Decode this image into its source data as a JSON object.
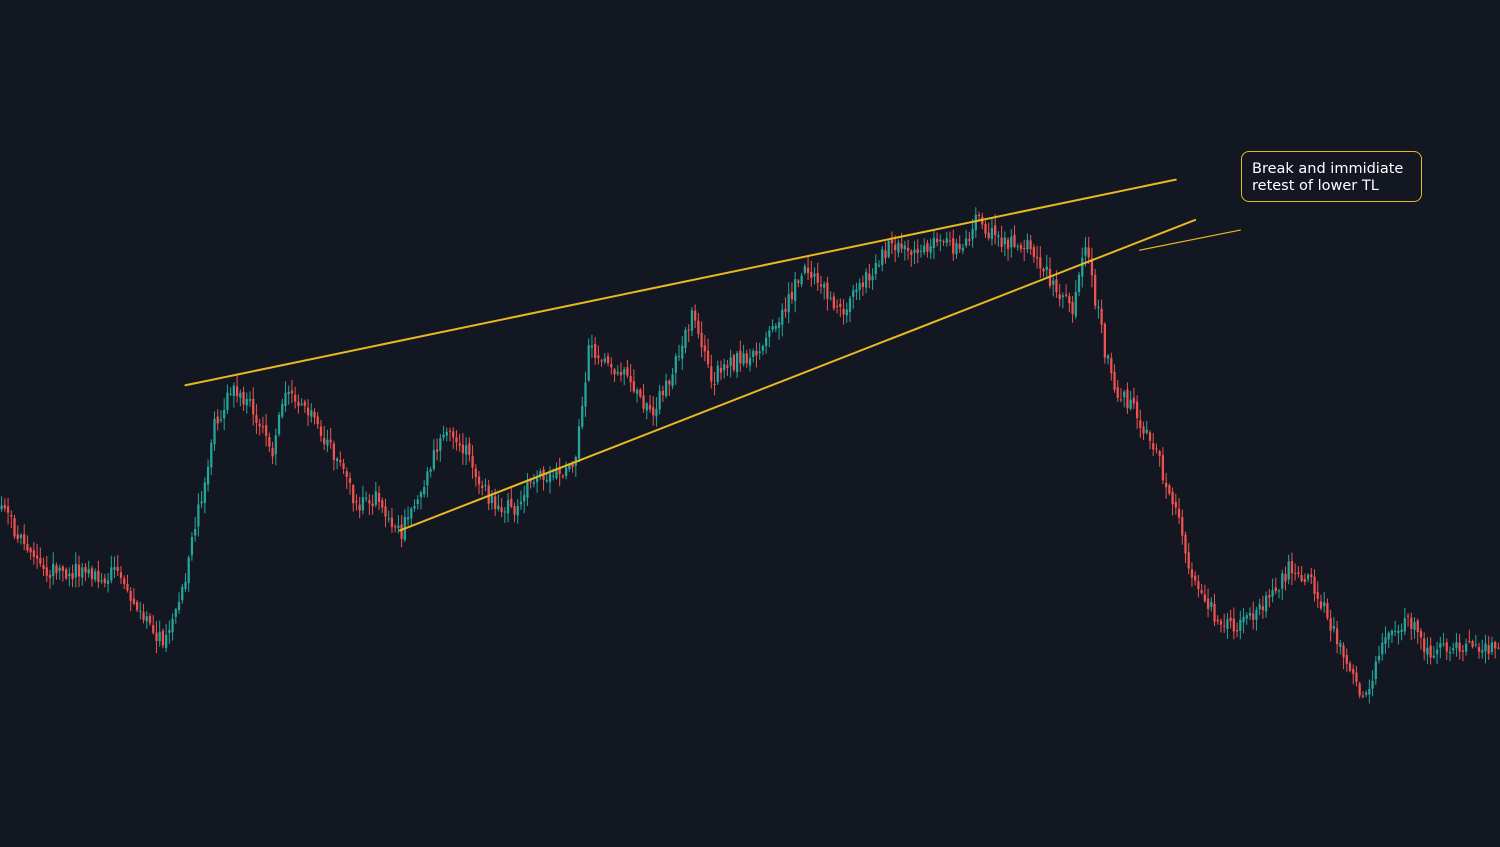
{
  "chart_data": {
    "type": "candlestick",
    "title": "",
    "xlabel": "",
    "ylabel": "",
    "ylim": [
      0,
      100
    ],
    "grid": false,
    "legend": "none",
    "colors": {
      "background": "#131722",
      "up": "#26a69a",
      "down": "#ef5350",
      "trendline": "#e8b820",
      "annotation_text": "#ffffff"
    },
    "anchors": [
      [
        0,
        39.0
      ],
      [
        12,
        30.2
      ],
      [
        24,
        29.6
      ],
      [
        36,
        29.0
      ],
      [
        44,
        22.6
      ],
      [
        50,
        18.8
      ],
      [
        56,
        26.6
      ],
      [
        60,
        36.0
      ],
      [
        66,
        51.6
      ],
      [
        72,
        57.4
      ],
      [
        80,
        52.1
      ],
      [
        84,
        47.6
      ],
      [
        88,
        57.2
      ],
      [
        96,
        52.9
      ],
      [
        102,
        48.3
      ],
      [
        110,
        39.7
      ],
      [
        116,
        40.7
      ],
      [
        124,
        35.7
      ],
      [
        132,
        44.2
      ],
      [
        138,
        51.4
      ],
      [
        144,
        47.4
      ],
      [
        152,
        40.1
      ],
      [
        158,
        38.8
      ],
      [
        166,
        44.0
      ],
      [
        174,
        45.1
      ],
      [
        178,
        47.0
      ],
      [
        182,
        63.1
      ],
      [
        188,
        60.4
      ],
      [
        194,
        58.4
      ],
      [
        202,
        53.3
      ],
      [
        208,
        59.8
      ],
      [
        214,
        67.9
      ],
      [
        220,
        58.4
      ],
      [
        228,
        61.3
      ],
      [
        236,
        62.4
      ],
      [
        244,
        70.6
      ],
      [
        250,
        75.1
      ],
      [
        256,
        70.8
      ],
      [
        262,
        68.8
      ],
      [
        270,
        74.8
      ],
      [
        276,
        78.5
      ],
      [
        284,
        76.1
      ],
      [
        290,
        79.8
      ],
      [
        298,
        77.0
      ],
      [
        302,
        82.3
      ],
      [
        310,
        78.5
      ],
      [
        318,
        77.8
      ],
      [
        324,
        74.0
      ],
      [
        332,
        68.5
      ],
      [
        336,
        78.2
      ],
      [
        342,
        62.7
      ],
      [
        346,
        56.3
      ],
      [
        350,
        54.5
      ],
      [
        356,
        50.0
      ],
      [
        362,
        41.7
      ],
      [
        368,
        31.1
      ],
      [
        376,
        22.9
      ],
      [
        382,
        20.9
      ],
      [
        390,
        24.0
      ],
      [
        400,
        30.7
      ],
      [
        406,
        28.1
      ],
      [
        414,
        20.1
      ],
      [
        422,
        10.7
      ],
      [
        430,
        20.2
      ],
      [
        436,
        22.5
      ],
      [
        442,
        17.8
      ],
      [
        450,
        19.1
      ],
      [
        458,
        17.5
      ],
      [
        464,
        19.0
      ]
    ],
    "trendlines": [
      {
        "name": "upper-trendline",
        "from": [
          57.0,
          57.4
        ],
        "to": [
          364.0,
          88.0
        ]
      },
      {
        "name": "lower-trendline",
        "from": [
          123.5,
          35.8
        ],
        "to": [
          370.0,
          82.0
        ]
      },
      {
        "name": "annotation-pointer",
        "from": [
          352.8,
          77.5
        ],
        "to": [
          384.0,
          80.5
        ]
      }
    ],
    "annotation": {
      "lines": [
        "Break and immidiate",
        "retest of lower TL"
      ]
    }
  }
}
